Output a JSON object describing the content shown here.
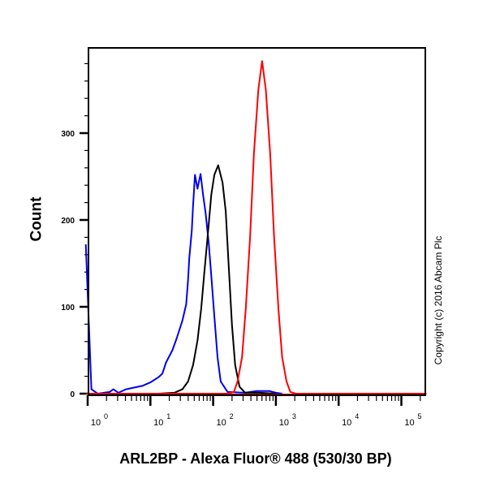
{
  "chart_data": {
    "type": "line",
    "title": "",
    "xlabel": "ARL2BP - Alexa Fluor® 488 (530/30 BP)",
    "ylabel": "Count",
    "xscale": "log",
    "xlim_log10": [
      -0.02,
      5.4
    ],
    "ylim": [
      0,
      398
    ],
    "yticks": [
      0,
      100,
      200,
      300
    ],
    "ytick_labels": [
      "0",
      "100",
      "200",
      "300"
    ],
    "xticks_log10": [
      0,
      1,
      2,
      3,
      4,
      5
    ],
    "xtick_labels": [
      "10^0",
      "10^1",
      "10^2",
      "10^3",
      "10^4",
      "10^5"
    ],
    "grid": false,
    "legend": null,
    "annotation": "Copyright (c) 2016 Abcam Plc",
    "series": [
      {
        "name": "blue",
        "color": "#0000ee",
        "points_log10x_count": [
          [
            -0.03,
            172
          ],
          [
            0.06,
            5
          ],
          [
            0.16,
            0
          ],
          [
            0.35,
            2
          ],
          [
            0.41,
            5
          ],
          [
            0.49,
            1
          ],
          [
            0.61,
            5
          ],
          [
            0.74,
            7
          ],
          [
            0.87,
            9
          ],
          [
            1.0,
            13
          ],
          [
            1.13,
            19
          ],
          [
            1.19,
            23
          ],
          [
            1.25,
            36
          ],
          [
            1.35,
            50
          ],
          [
            1.42,
            64
          ],
          [
            1.51,
            84
          ],
          [
            1.57,
            103
          ],
          [
            1.6,
            131
          ],
          [
            1.62,
            156
          ],
          [
            1.66,
            188
          ],
          [
            1.68,
            217
          ],
          [
            1.71,
            252
          ],
          [
            1.75,
            236
          ],
          [
            1.8,
            253
          ],
          [
            1.84,
            229
          ],
          [
            1.88,
            208
          ],
          [
            1.93,
            173
          ],
          [
            1.97,
            136
          ],
          [
            2.02,
            89
          ],
          [
            2.07,
            42
          ],
          [
            2.12,
            14
          ],
          [
            2.23,
            2
          ],
          [
            2.5,
            1
          ],
          [
            2.7,
            3
          ],
          [
            2.9,
            3
          ],
          [
            3.0,
            1
          ],
          [
            3.1,
            0
          ]
        ]
      },
      {
        "name": "black",
        "color": "#000000",
        "points_log10x_count": [
          [
            1.13,
            0
          ],
          [
            1.38,
            1
          ],
          [
            1.51,
            5
          ],
          [
            1.6,
            14
          ],
          [
            1.68,
            33
          ],
          [
            1.75,
            61
          ],
          [
            1.81,
            98
          ],
          [
            1.86,
            140
          ],
          [
            1.92,
            187
          ],
          [
            1.97,
            229
          ],
          [
            2.02,
            252
          ],
          [
            2.08,
            263
          ],
          [
            2.15,
            243
          ],
          [
            2.2,
            210
          ],
          [
            2.25,
            145
          ],
          [
            2.3,
            79
          ],
          [
            2.35,
            33
          ],
          [
            2.42,
            8
          ],
          [
            2.51,
            1
          ],
          [
            2.74,
            1
          ],
          [
            3.0,
            0
          ]
        ]
      },
      {
        "name": "red",
        "color": "#ff0000",
        "points_log10x_count": [
          [
            -0.02,
            0
          ],
          [
            2.23,
            0
          ],
          [
            2.33,
            2
          ],
          [
            2.39,
            14
          ],
          [
            2.46,
            42
          ],
          [
            2.52,
            98
          ],
          [
            2.59,
            182
          ],
          [
            2.65,
            276
          ],
          [
            2.72,
            350
          ],
          [
            2.78,
            383
          ],
          [
            2.84,
            350
          ],
          [
            2.91,
            276
          ],
          [
            2.97,
            182
          ],
          [
            3.04,
            98
          ],
          [
            3.1,
            42
          ],
          [
            3.17,
            14
          ],
          [
            3.23,
            2
          ],
          [
            3.32,
            0
          ],
          [
            5.4,
            0
          ]
        ]
      }
    ]
  }
}
